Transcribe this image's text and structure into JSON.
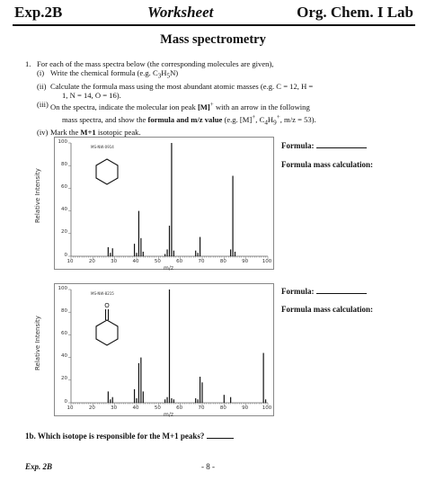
{
  "header": {
    "left": "Exp.2B",
    "center": "Worksheet",
    "right": "Org. Chem. I Lab"
  },
  "title": "Mass spectrometry",
  "instructions": {
    "number": "1.",
    "intro": "For each of the mass spectra below (the corresponding molecules are given),",
    "items": [
      {
        "num": "(i)",
        "text": "Write the chemical formula (e.g. C3H5N)"
      },
      {
        "num": "(ii)",
        "text": "Calculate the formula mass using the most abundant atomic masses (e.g. C = 12, H =",
        "cont": "1, N = 14, O = 16)."
      },
      {
        "num": "(iii)",
        "text": "On the spectra, indicate the molecular ion peak [M]+ with an arrow in the following",
        "cont": "mass spectra, and show the formula and m/z value (e.g. [M]+, C4H9+, m/z = 53)."
      },
      {
        "num": "(iv)",
        "text": "Mark the M+1 isotopic peak."
      }
    ]
  },
  "side_labels": {
    "formula": "Formula:",
    "formula_mass": "Formula mass calculation:"
  },
  "question_1b": "1b. Which isotope is responsible for the M+1 peaks?",
  "footer": {
    "left": "Exp. 2B",
    "page": "- 8 -"
  },
  "chart_data": [
    {
      "type": "bar",
      "molecule": "cyclohexane",
      "ylabel": "Relative Intensity",
      "xlabel": "m/z",
      "spectrum_id": "MS-NW-0914",
      "xlim": [
        10,
        100
      ],
      "ylim": [
        0,
        100
      ],
      "xticks": [
        10,
        20,
        30,
        40,
        50,
        60,
        70,
        80,
        90,
        100
      ],
      "yticks": [
        0,
        20,
        40,
        60,
        80,
        100
      ],
      "x": [
        27,
        28,
        29,
        39,
        40,
        41,
        42,
        43,
        53,
        54,
        55,
        56,
        57,
        67,
        68,
        69,
        83,
        84,
        85
      ],
      "values": [
        8,
        3,
        7,
        11,
        3,
        40,
        16,
        4,
        2,
        6,
        27,
        100,
        5,
        5,
        3,
        17,
        6,
        71,
        4
      ]
    },
    {
      "type": "bar",
      "molecule": "cyclohexanone",
      "ylabel": "Relative Intensity",
      "xlabel": "m/z",
      "spectrum_id": "MS-NW-8215",
      "xlim": [
        10,
        100
      ],
      "ylim": [
        0,
        100
      ],
      "xticks": [
        10,
        20,
        30,
        40,
        50,
        60,
        70,
        80,
        90,
        100
      ],
      "yticks": [
        0,
        20,
        40,
        60,
        80,
        100
      ],
      "x": [
        27,
        28,
        29,
        39,
        40,
        41,
        42,
        43,
        53,
        54,
        55,
        56,
        57,
        67,
        68,
        69,
        70,
        80,
        83,
        98,
        99
      ],
      "values": [
        10,
        3,
        5,
        12,
        4,
        35,
        40,
        10,
        3,
        5,
        100,
        4,
        3,
        4,
        3,
        23,
        18,
        7,
        5,
        44,
        3
      ]
    }
  ]
}
